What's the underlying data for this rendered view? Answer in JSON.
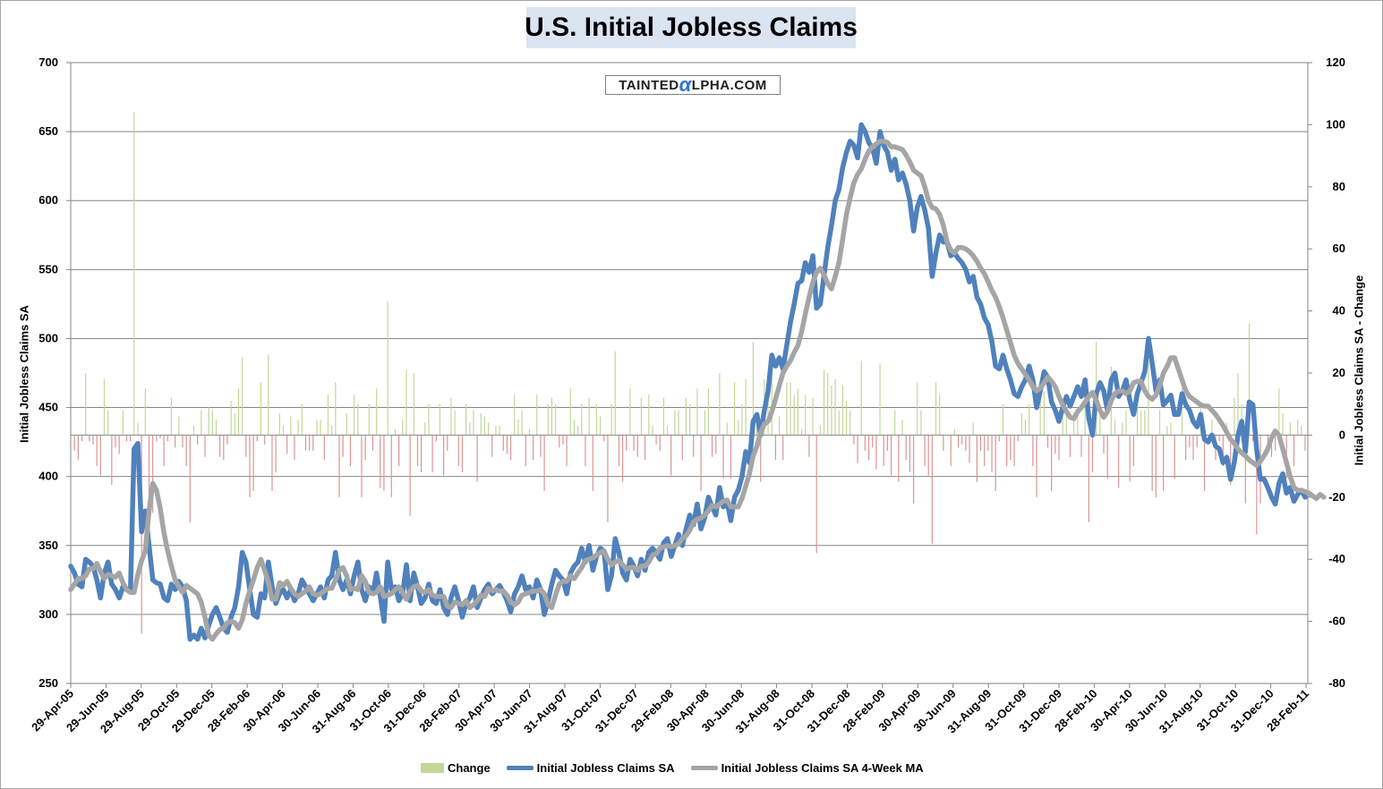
{
  "chart_data": {
    "type": "bar+line",
    "title": "U.S. Initial Jobless Claims",
    "watermark": {
      "pre": "TAINTED",
      "alpha": "α",
      "post": "LPHA.COM"
    },
    "ylabel_left": "Initial Jobless Claims SA",
    "ylabel_right": "Initial Jobless Claims SA - Change",
    "ylim_left": [
      250,
      700
    ],
    "ylim_right": [
      -80,
      120
    ],
    "yticks_left": [
      250,
      300,
      350,
      400,
      450,
      500,
      550,
      600,
      650,
      700
    ],
    "yticks_right": [
      -80,
      -60,
      -40,
      -20,
      0,
      20,
      40,
      60,
      80,
      100,
      120
    ],
    "x_tick_labels": [
      "29-Apr-05",
      "29-Jun-05",
      "29-Aug-05",
      "29-Oct-05",
      "29-Dec-05",
      "28-Feb-06",
      "30-Apr-06",
      "30-Jun-06",
      "31-Aug-06",
      "31-Oct-06",
      "31-Dec-06",
      "28-Feb-07",
      "30-Apr-07",
      "30-Jun-07",
      "31-Aug-07",
      "31-Oct-07",
      "31-Dec-07",
      "29-Feb-08",
      "30-Apr-08",
      "30-Jun-08",
      "31-Aug-08",
      "31-Oct-08",
      "31-Dec-08",
      "28-Feb-09",
      "30-Apr-09",
      "30-Jun-09",
      "31-Aug-09",
      "31-Oct-09",
      "31-Dec-09",
      "28-Feb-10",
      "30-Apr-10",
      "30-Jun-10",
      "31-Aug-10",
      "31-Oct-10",
      "31-Dec-10",
      "28-Feb-11"
    ],
    "series": [
      {
        "name": "Change",
        "type": "bar",
        "axis": "right",
        "color_pos": "#c3d69b",
        "color_neg": "#d99694"
      },
      {
        "name": "Initial Jobless Claims SA",
        "type": "line",
        "axis": "left",
        "color": "#4f81bd",
        "values": [
          335,
          330,
          322,
          320,
          340,
          338,
          335,
          325,
          312,
          330,
          338,
          322,
          318,
          312,
          320,
          318,
          316,
          420,
          424,
          360,
          375,
          350,
          325,
          323,
          322,
          312,
          310,
          322,
          318,
          324,
          320,
          310,
          282,
          285,
          282,
          290,
          283,
          292,
          300,
          305,
          298,
          290,
          287,
          298,
          305,
          320,
          345,
          338,
          318,
          300,
          298,
          315,
          312,
          338,
          320,
          308,
          315,
          318,
          312,
          318,
          310,
          315,
          325,
          320,
          315,
          310,
          315,
          320,
          312,
          325,
          328,
          345,
          325,
          318,
          325,
          315,
          328,
          338,
          318,
          310,
          320,
          315,
          330,
          313,
          295,
          338,
          318,
          320,
          310,
          315,
          336,
          310,
          330,
          320,
          308,
          312,
          322,
          310,
          308,
          318,
          305,
          300,
          312,
          320,
          310,
          298,
          308,
          312,
          320,
          305,
          312,
          318,
          322,
          315,
          318,
          321,
          316,
          310,
          302,
          315,
          320,
          328,
          318,
          320,
          312,
          325,
          318,
          300,
          310,
          322,
          332,
          328,
          325,
          315,
          330,
          335,
          338,
          348,
          338,
          350,
          332,
          342,
          348,
          346,
          318,
          328,
          355,
          345,
          330,
          325,
          340,
          335,
          328,
          340,
          332,
          345,
          348,
          345,
          340,
          352,
          355,
          342,
          350,
          358,
          350,
          362,
          372,
          365,
          380,
          362,
          370,
          385,
          378,
          372,
          392,
          378,
          382,
          368,
          385,
          390,
          400,
          418,
          410,
          440,
          445,
          430,
          448,
          462,
          488,
          480,
          486,
          478,
          495,
          512,
          525,
          540,
          542,
          555,
          548,
          560,
          522,
          525,
          546,
          566,
          582,
          600,
          608,
          624,
          635,
          643,
          640,
          631,
          655,
          650,
          642,
          638,
          627,
          650,
          640,
          635,
          622,
          630,
          615,
          620,
          612,
          600,
          578,
          595,
          603,
          593,
          580,
          545,
          562,
          575,
          570,
          570,
          560,
          562,
          558,
          555,
          550,
          541,
          545,
          530,
          525,
          515,
          510,
          498,
          480,
          478,
          488,
          478,
          470,
          460,
          458,
          465,
          470,
          480,
          470,
          450,
          462,
          476,
          472,
          454,
          448,
          440,
          450,
          458,
          451,
          458,
          465,
          458,
          470,
          442,
          430,
          460,
          468,
          462,
          448,
          470,
          475,
          458,
          462,
          470,
          455,
          445,
          460,
          468,
          476,
          500,
          482,
          462,
          470,
          452,
          455,
          459,
          445,
          445,
          460,
          452,
          448,
          440,
          436,
          445,
          427,
          425,
          430,
          422,
          420,
          410,
          414,
          398,
          410,
          430,
          440,
          418,
          454,
          452,
          420,
          398,
          398,
          392,
          385,
          380,
          395,
          402,
          388,
          392,
          382,
          387,
          390,
          385
        ]
      },
      {
        "name": "Initial Jobless Claims SA 4-Week MA",
        "type": "line",
        "axis": "left",
        "color": "#a5a5a5",
        "values": [
          318,
          322,
          326,
          326,
          328,
          333,
          333,
          337,
          331,
          326,
          329,
          328,
          327,
          330,
          323,
          318,
          316,
          316,
          329,
          339,
          346,
          375,
          395,
          390,
          377,
          359,
          346,
          335,
          325,
          320,
          316,
          321,
          319,
          317,
          315,
          309,
          298,
          285,
          282,
          286,
          289,
          290,
          294,
          295,
          294,
          290,
          296,
          308,
          317,
          325,
          334,
          340,
          332,
          323,
          311,
          311,
          323,
          321,
          324,
          319,
          315,
          313,
          315,
          317,
          320,
          315,
          314,
          315,
          317,
          319,
          319,
          325,
          332,
          334,
          328,
          318,
          319,
          318,
          328,
          324,
          316,
          315,
          316,
          320,
          313,
          314,
          315,
          318,
          320,
          316,
          311,
          317,
          320,
          321,
          317,
          316,
          318,
          314,
          313,
          313,
          313,
          306,
          305,
          309,
          308,
          307,
          310,
          305,
          307,
          310,
          314,
          313,
          319,
          317,
          318,
          317,
          317,
          314,
          309,
          307,
          309,
          314,
          315,
          316,
          317,
          317,
          318,
          315,
          307,
          305,
          314,
          322,
          324,
          324,
          328,
          326,
          330,
          334,
          339,
          340,
          341,
          343,
          345,
          346,
          340,
          336,
          338,
          339,
          336,
          333,
          334,
          334,
          332,
          335,
          335,
          338,
          343,
          344,
          348,
          349,
          350,
          349,
          350,
          351,
          355,
          357,
          361,
          367,
          369,
          370,
          372,
          375,
          379,
          378,
          380,
          382,
          383,
          378,
          378,
          378,
          384,
          393,
          402,
          415,
          422,
          432,
          438,
          440,
          447,
          456,
          466,
          475,
          480,
          484,
          490,
          495,
          505,
          518,
          530,
          541,
          548,
          551,
          546,
          540,
          536,
          545,
          555,
          572,
          590,
          602,
          613,
          619,
          623,
          630,
          636,
          639,
          641,
          643,
          643,
          642,
          639,
          639,
          638,
          637,
          633,
          628,
          622,
          620,
          618,
          610,
          600,
          595,
          594,
          590,
          582,
          570,
          564,
          562,
          566,
          566,
          565,
          563,
          560,
          556,
          551,
          547,
          541,
          535,
          530,
          523,
          515,
          506,
          497,
          488,
          482,
          478,
          474,
          470,
          465,
          462,
          464,
          468,
          472,
          469,
          465,
          458,
          452,
          447,
          443,
          442,
          447,
          450,
          454,
          458,
          461,
          455,
          448,
          443,
          447,
          455,
          460,
          462,
          462,
          460,
          462,
          468,
          469,
          469,
          462,
          458,
          456,
          459,
          466,
          475,
          480,
          486,
          486,
          478,
          470,
          462,
          458,
          456,
          454,
          452,
          451,
          451,
          448,
          445,
          441,
          437,
          432,
          427,
          424,
          420,
          417,
          415,
          412,
          410,
          408,
          411,
          415,
          420,
          428,
          433,
          430,
          420,
          410,
          400,
          392,
          390,
          390,
          389,
          388,
          386,
          384,
          387,
          385
        ]
      }
    ]
  },
  "legend": {
    "change": "Change",
    "claims": "Initial Jobless Claims SA",
    "ma": "Initial Jobless Claims SA 4-Week MA"
  }
}
